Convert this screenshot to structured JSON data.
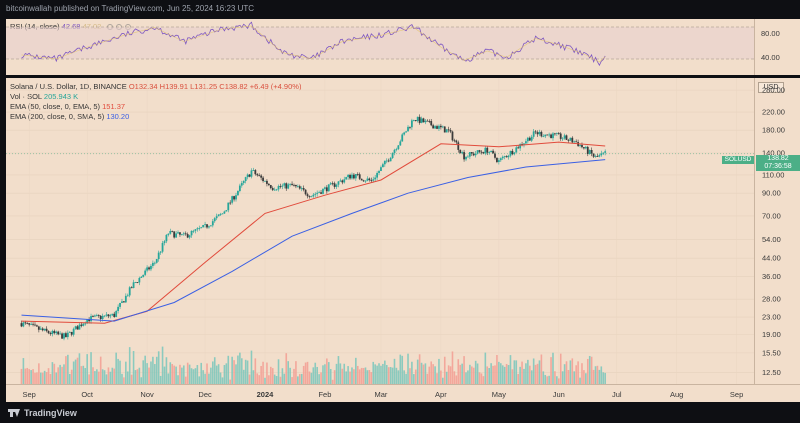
{
  "header": {
    "published": "bitcoinwallah published on TradingView.com, Jun 25, 2024 16:23 UTC"
  },
  "rsi": {
    "title": "RSI (14, close)",
    "value": "42.68",
    "value2": "47.02",
    "levels": [
      "80.00",
      "40.00"
    ],
    "line_color": "#7e57c2"
  },
  "legend": {
    "symbol": "Solana / U.S. Dollar, 1D, BINANCE",
    "ohlc": "O132.34 H139.91 L131.25 C138.82 +6.49 (+4.90%)",
    "vol_label": "Vol · SOL",
    "vol_value": "205.943 K",
    "ema50_label": "EMA (50, close, 0, EMA, 5)",
    "ema50_value": "151.37",
    "ema200_label": "EMA (200, close, 0, SMA, 5)",
    "ema200_value": "130.20"
  },
  "price_axis": {
    "currency": "USD",
    "ticks": [
      "280.00",
      "220.00",
      "180.00",
      "140.00",
      "110.00",
      "90.00",
      "70.00",
      "54.00",
      "44.00",
      "36.00",
      "28.00",
      "23.00",
      "19.00",
      "15.50",
      "12.50"
    ],
    "last_price": "138.82",
    "countdown": "07:36:58",
    "symbol_tag": "SOLUSD"
  },
  "footer": {
    "brand": "TradingView"
  },
  "chart_data": {
    "type": "candlestick",
    "title": "Solana / U.S. Dollar, 1D, BINANCE",
    "x_ticks": [
      "Sep",
      "Oct",
      "Nov",
      "Dec",
      "2024",
      "Feb",
      "Mar",
      "Apr",
      "May",
      "Jun",
      "Jul",
      "Aug",
      "Sep"
    ],
    "y_scale": "log",
    "ylim": [
      11,
      320
    ],
    "colors": {
      "up": "#26a69a",
      "down": "#3b3b3b",
      "ema50": "#e14b3c",
      "ema200": "#3b60e4",
      "rsi": "#7e57c2",
      "vol_up": "#7fc8bc",
      "vol_down": "#f3a196"
    },
    "price_path": [
      [
        "2023-08-28",
        21.5
      ],
      [
        "2023-09-10",
        19.5
      ],
      [
        "2023-09-20",
        18.5
      ],
      [
        "2023-10-01",
        22.5
      ],
      [
        "2023-10-15",
        23.5
      ],
      [
        "2023-10-25",
        33.0
      ],
      [
        "2023-11-05",
        42.0
      ],
      [
        "2023-11-12",
        58.0
      ],
      [
        "2023-11-20",
        56.0
      ],
      [
        "2023-12-01",
        62.0
      ],
      [
        "2023-12-10",
        72.0
      ],
      [
        "2023-12-25",
        115.0
      ],
      [
        "2024-01-05",
        96.0
      ],
      [
        "2024-01-15",
        98.0
      ],
      [
        "2024-01-25",
        88.0
      ],
      [
        "2024-02-05",
        98.0
      ],
      [
        "2024-02-15",
        110.0
      ],
      [
        "2024-02-25",
        103.0
      ],
      [
        "2024-03-05",
        132.0
      ],
      [
        "2024-03-18",
        205.0
      ],
      [
        "2024-03-28",
        190.0
      ],
      [
        "2024-04-05",
        178.0
      ],
      [
        "2024-04-13",
        135.0
      ],
      [
        "2024-04-25",
        145.0
      ],
      [
        "2024-05-01",
        128.0
      ],
      [
        "2024-05-10",
        148.0
      ],
      [
        "2024-05-20",
        175.0
      ],
      [
        "2024-06-01",
        168.0
      ],
      [
        "2024-06-10",
        158.0
      ],
      [
        "2024-06-20",
        133.0
      ],
      [
        "2024-06-25",
        138.82
      ]
    ],
    "ema50_path": [
      [
        "2023-08-28",
        22.0
      ],
      [
        "2023-10-10",
        21.5
      ],
      [
        "2023-11-01",
        24.5
      ],
      [
        "2023-12-01",
        42.0
      ],
      [
        "2024-01-01",
        72.0
      ],
      [
        "2024-02-01",
        88.0
      ],
      [
        "2024-03-01",
        104.0
      ],
      [
        "2024-04-01",
        155.0
      ],
      [
        "2024-05-01",
        150.0
      ],
      [
        "2024-06-01",
        158.0
      ],
      [
        "2024-06-25",
        151.37
      ]
    ],
    "ema200_path": [
      [
        "2023-08-28",
        23.5
      ],
      [
        "2023-10-15",
        22.0
      ],
      [
        "2023-11-15",
        27.0
      ],
      [
        "2023-12-15",
        38.0
      ],
      [
        "2024-01-15",
        56.0
      ],
      [
        "2024-02-15",
        72.0
      ],
      [
        "2024-03-15",
        90.0
      ],
      [
        "2024-04-15",
        107.0
      ],
      [
        "2024-05-15",
        120.0
      ],
      [
        "2024-06-25",
        130.2
      ]
    ],
    "rsi_path": [
      [
        "2023-08-28",
        45
      ],
      [
        "2023-09-15",
        40
      ],
      [
        "2023-10-01",
        55
      ],
      [
        "2023-10-20",
        70
      ],
      [
        "2023-11-05",
        80
      ],
      [
        "2023-11-20",
        62
      ],
      [
        "2023-12-10",
        78
      ],
      [
        "2023-12-25",
        82
      ],
      [
        "2024-01-10",
        48
      ],
      [
        "2024-01-25",
        40
      ],
      [
        "2024-02-10",
        62
      ],
      [
        "2024-03-01",
        70
      ],
      [
        "2024-03-18",
        80
      ],
      [
        "2024-04-01",
        55
      ],
      [
        "2024-04-13",
        38
      ],
      [
        "2024-04-25",
        50
      ],
      [
        "2024-05-05",
        42
      ],
      [
        "2024-05-20",
        66
      ],
      [
        "2024-06-01",
        58
      ],
      [
        "2024-06-15",
        45
      ],
      [
        "2024-06-22",
        36
      ],
      [
        "2024-06-25",
        42.68
      ]
    ]
  }
}
